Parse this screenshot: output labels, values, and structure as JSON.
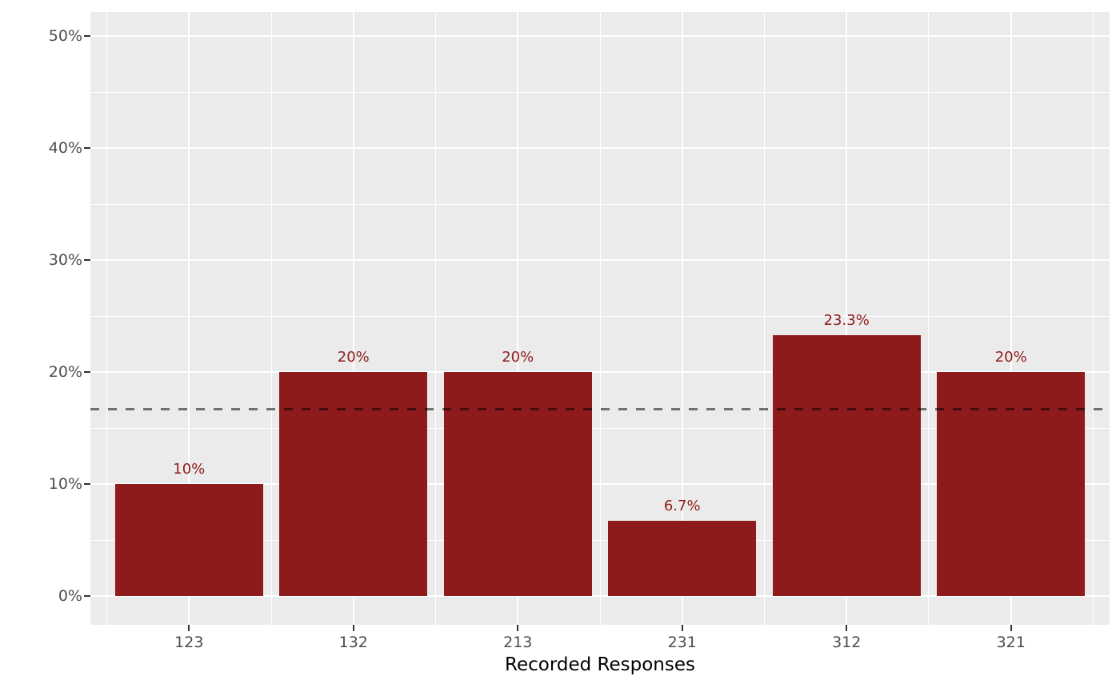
{
  "chart_data": {
    "type": "bar",
    "title": "",
    "xlabel": "Recorded Responses",
    "ylabel": "",
    "categories": [
      "123",
      "132",
      "213",
      "231",
      "312",
      "321"
    ],
    "values": [
      10,
      20,
      20,
      6.7,
      23.3,
      20
    ],
    "bar_labels": [
      "10%",
      "20%",
      "20%",
      "6.7%",
      "23.3%",
      "20%"
    ],
    "y_major_ticks": [
      0,
      10,
      20,
      30,
      40,
      50
    ],
    "y_tick_labels": [
      "0%",
      "10%",
      "20%",
      "30%",
      "40%",
      "50%"
    ],
    "y_minor_ticks": [
      5,
      15,
      25,
      35,
      45
    ],
    "ylim": [
      0,
      52.1
    ],
    "grid": true,
    "legend": false,
    "reference_line": {
      "value": 16.7,
      "style": "dashed"
    },
    "colors": {
      "bar": "#8e1b1b",
      "bar_label": "#8e1b1b",
      "panel_background": "#ebebeb",
      "gridline": "#ffffff",
      "axis_text": "#4d4d4d",
      "tick_mark": "#333333",
      "axis_title": "#000000",
      "reference_line": "rgba(0,0,0,0.52)",
      "outer_background": "#ffffff"
    }
  }
}
